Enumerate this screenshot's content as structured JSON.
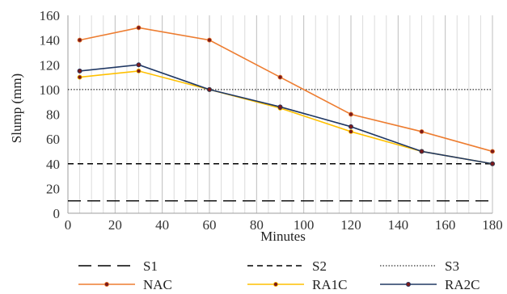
{
  "chart_data": {
    "type": "line",
    "title": "",
    "xlabel": "Minutes",
    "ylabel": "Slump (mm)",
    "xlim": [
      0,
      180
    ],
    "ylim": [
      0,
      160
    ],
    "xticks": [
      0,
      20,
      40,
      60,
      80,
      100,
      120,
      140,
      160,
      180
    ],
    "yticks": [
      0,
      20,
      40,
      60,
      80,
      100,
      120,
      140,
      160
    ],
    "grid": {
      "vertical_minor_step": 5,
      "vertical": true,
      "horizontal": false
    },
    "legend_position": "bottom",
    "reference_lines": [
      {
        "name": "S1",
        "y": 10,
        "style": "long-dash",
        "color": "#000000"
      },
      {
        "name": "S2",
        "y": 40,
        "style": "dash",
        "color": "#000000"
      },
      {
        "name": "S3",
        "y": 100,
        "style": "dot",
        "color": "#000000"
      }
    ],
    "series": [
      {
        "name": "NAC",
        "color": "#ED7D31",
        "x": [
          5,
          30,
          60,
          90,
          120,
          150,
          180
        ],
        "values": [
          140,
          150,
          140,
          110,
          80,
          66,
          50
        ]
      },
      {
        "name": "RA1C",
        "color": "#FFC000",
        "x": [
          5,
          30,
          60,
          90,
          120,
          150,
          180
        ],
        "values": [
          110,
          115,
          100,
          85,
          66,
          50,
          40
        ]
      },
      {
        "name": "RA2C",
        "color": "#203864",
        "x": [
          5,
          30,
          60,
          90,
          120,
          150,
          180
        ],
        "values": [
          115,
          120,
          100,
          86,
          70,
          50,
          40
        ]
      }
    ],
    "marker_color": "#7B1A1A"
  }
}
